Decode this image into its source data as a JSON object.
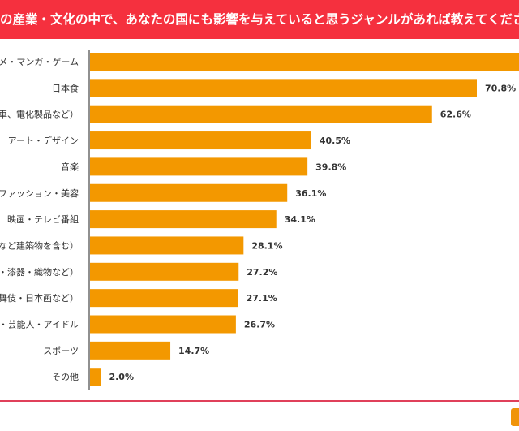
{
  "chart_data": {
    "type": "bar",
    "orientation": "horizontal",
    "title": "の産業・文化の中で、あなたの国にも影響を与えていると思うジャンルがあれば教えてください（複数回",
    "categories": [
      "ニメ・マンガ・ゲーム",
      "日本食",
      "動車、電化製品など）",
      "アート・デザイン",
      "音楽",
      "ファッション・美容",
      "映画・テレビ番組",
      "園など建築物を含む）",
      "器・漆器・織物など）",
      "歌舞伎・日本画など）",
      "優・芸能人・アイドル",
      "スポーツ",
      "その他"
    ],
    "values": [
      80.0,
      70.8,
      62.6,
      40.5,
      39.8,
      36.1,
      34.1,
      28.1,
      27.2,
      27.1,
      26.7,
      14.7,
      2.0
    ],
    "value_labels": [
      null,
      "70.8%",
      "62.6%",
      "40.5%",
      "39.8%",
      "36.1%",
      "34.1%",
      "28.1%",
      "27.2%",
      "27.1%",
      "26.7%",
      "14.7%",
      "2.0%"
    ],
    "xlabel": "",
    "ylabel": "",
    "xlim": [
      0,
      80
    ],
    "grid": false,
    "bar_color": "#f39800"
  }
}
